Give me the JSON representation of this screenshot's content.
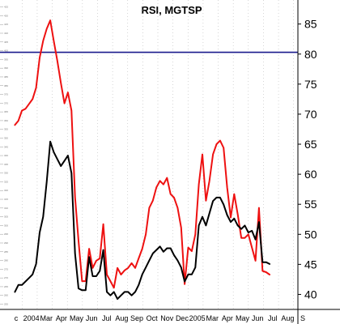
{
  "chart_data": {
    "type": "line",
    "title": "RSI, MGTSP",
    "xlabel": "",
    "ylabel": "",
    "x_ticks": [
      "c",
      "2004",
      "Mar",
      "Apr",
      "May",
      "Jun",
      "Jul",
      "Aug",
      "Sep",
      "Oct",
      "Nov",
      "Dec",
      "2005",
      "Mar",
      "Apr",
      "May",
      "Jun",
      "Jul",
      "Aug",
      "S"
    ],
    "y_ticks_right": [
      40,
      45,
      50,
      55,
      60,
      65,
      70,
      75,
      80,
      85
    ],
    "y_ticks_left": [
      255,
      260,
      265,
      270,
      275,
      280,
      285,
      290,
      295,
      300,
      305,
      310,
      315,
      320,
      325,
      330,
      335,
      340,
      345,
      350,
      355,
      360,
      365,
      370,
      375,
      380,
      385,
      390,
      395,
      400,
      405,
      410,
      415,
      420,
      425
    ],
    "ylim_right": [
      37.5,
      89
    ],
    "ylim_left": [
      252,
      429
    ],
    "reference_line": {
      "value": 80.3,
      "color": "#1a1a8c"
    },
    "colors": {
      "price": "#000000",
      "rsi": "#ee1111",
      "grid": "#bbbbbb"
    },
    "series": [
      {
        "key": "rsi",
        "axis": "right",
        "values": [
          [
            0,
            68.2
          ],
          [
            1,
            68.9
          ],
          [
            2,
            70.6
          ],
          [
            3,
            70.9
          ],
          [
            4,
            71.7
          ],
          [
            5,
            72.5
          ],
          [
            6,
            74.4
          ],
          [
            7,
            79.4
          ],
          [
            8,
            82.2
          ],
          [
            9,
            84.2
          ],
          [
            10,
            85.6
          ],
          [
            11,
            82.2
          ],
          [
            12,
            78.9
          ],
          [
            13,
            75.2
          ],
          [
            14,
            71.8
          ],
          [
            15,
            73.6
          ],
          [
            16,
            70.6
          ],
          [
            17,
            56.2
          ],
          [
            18,
            48.9
          ],
          [
            19,
            42.2
          ],
          [
            20,
            42.2
          ],
          [
            21,
            47.6
          ],
          [
            22,
            44.4
          ],
          [
            23,
            45.6
          ],
          [
            24,
            46.0
          ],
          [
            25,
            51.7
          ],
          [
            26,
            43.3
          ],
          [
            27,
            42.2
          ],
          [
            28,
            41.1
          ],
          [
            29,
            44.4
          ],
          [
            30,
            43.3
          ],
          [
            31,
            44.0
          ],
          [
            32,
            44.4
          ],
          [
            33,
            45.2
          ],
          [
            34,
            44.4
          ],
          [
            35,
            46.0
          ],
          [
            36,
            47.6
          ],
          [
            37,
            50.0
          ],
          [
            38,
            54.4
          ],
          [
            39,
            55.6
          ],
          [
            40,
            57.8
          ],
          [
            41,
            58.9
          ],
          [
            42,
            58.3
          ],
          [
            43,
            59.4
          ],
          [
            44,
            56.7
          ],
          [
            45,
            56.1
          ],
          [
            46,
            54.4
          ],
          [
            47,
            51.1
          ],
          [
            48,
            41.7
          ],
          [
            49,
            47.8
          ],
          [
            50,
            47.2
          ],
          [
            51,
            50.0
          ],
          [
            52,
            58.3
          ],
          [
            53,
            63.3
          ],
          [
            54,
            55.6
          ],
          [
            55,
            58.9
          ],
          [
            56,
            63.3
          ],
          [
            57,
            65.0
          ],
          [
            58,
            65.6
          ],
          [
            59,
            64.4
          ],
          [
            60,
            57.8
          ],
          [
            61,
            52.8
          ],
          [
            62,
            56.7
          ],
          [
            63,
            53.3
          ],
          [
            64,
            49.4
          ],
          [
            65,
            49.4
          ],
          [
            66,
            50.0
          ],
          [
            67,
            47.8
          ],
          [
            68,
            45.6
          ],
          [
            69,
            54.4
          ],
          [
            70,
            43.9
          ],
          [
            71,
            43.7
          ],
          [
            72,
            43.3
          ]
        ]
      },
      {
        "key": "price",
        "axis": "left",
        "values": [
          [
            0,
            262
          ],
          [
            1,
            266
          ],
          [
            2,
            266
          ],
          [
            3,
            268
          ],
          [
            4,
            270
          ],
          [
            5,
            272
          ],
          [
            6,
            278
          ],
          [
            7,
            296
          ],
          [
            8,
            305
          ],
          [
            9,
            325
          ],
          [
            10,
            348
          ],
          [
            11,
            342
          ],
          [
            12,
            338
          ],
          [
            13,
            334
          ],
          [
            14,
            337
          ],
          [
            15,
            340
          ],
          [
            16,
            330
          ],
          [
            17,
            284
          ],
          [
            18,
            264
          ],
          [
            19,
            263
          ],
          [
            20,
            263
          ],
          [
            21,
            282
          ],
          [
            22,
            271
          ],
          [
            23,
            271
          ],
          [
            24,
            274
          ],
          [
            25,
            286
          ],
          [
            26,
            262
          ],
          [
            27,
            260
          ],
          [
            28,
            262
          ],
          [
            29,
            258
          ],
          [
            30,
            260
          ],
          [
            31,
            262
          ],
          [
            32,
            262
          ],
          [
            33,
            260
          ],
          [
            34,
            262
          ],
          [
            35,
            266
          ],
          [
            36,
            272
          ],
          [
            37,
            276
          ],
          [
            38,
            280
          ],
          [
            39,
            284
          ],
          [
            40,
            286
          ],
          [
            41,
            288
          ],
          [
            42,
            285
          ],
          [
            43,
            287
          ],
          [
            44,
            287
          ],
          [
            45,
            283
          ],
          [
            46,
            280
          ],
          [
            47,
            276
          ],
          [
            48,
            268
          ],
          [
            49,
            272
          ],
          [
            50,
            272
          ],
          [
            51,
            276
          ],
          [
            52,
            300
          ],
          [
            53,
            305
          ],
          [
            54,
            300
          ],
          [
            55,
            307
          ],
          [
            56,
            314
          ],
          [
            57,
            316
          ],
          [
            58,
            316
          ],
          [
            59,
            312
          ],
          [
            60,
            306
          ],
          [
            61,
            302
          ],
          [
            62,
            304
          ],
          [
            63,
            300
          ],
          [
            64,
            298
          ],
          [
            65,
            300
          ],
          [
            66,
            296
          ],
          [
            67,
            297
          ],
          [
            68,
            292
          ],
          [
            69,
            302
          ],
          [
            70,
            279
          ],
          [
            71,
            279
          ],
          [
            72,
            278
          ]
        ]
      }
    ],
    "x_range": [
      -1,
      80
    ]
  }
}
